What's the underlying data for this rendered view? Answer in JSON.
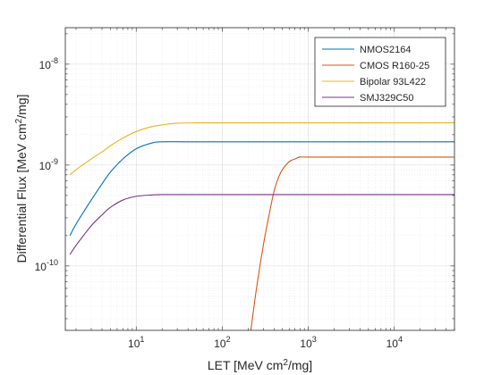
{
  "chart_data": {
    "type": "line",
    "xlabel": "LET [MeV cm²/mg]",
    "ylabel": "Differential Flux [MeV cm²/mg]",
    "xscale": "log",
    "yscale": "log",
    "xlim": [
      1.5,
      50000
    ],
    "ylim": [
      2.3e-11,
      2.3e-08
    ],
    "grid": true,
    "legend_position": "top-right",
    "x_ticks": [
      {
        "value": 10,
        "base": "10",
        "exp": "1"
      },
      {
        "value": 100,
        "base": "10",
        "exp": "2"
      },
      {
        "value": 1000,
        "base": "10",
        "exp": "3"
      },
      {
        "value": 10000,
        "base": "10",
        "exp": "4"
      }
    ],
    "y_ticks": [
      {
        "value": 1e-10,
        "base": "10",
        "exp": "-10"
      },
      {
        "value": 1e-09,
        "base": "10",
        "exp": "-9"
      },
      {
        "value": 1e-08,
        "base": "10",
        "exp": "-8"
      }
    ],
    "series": [
      {
        "name": "NMOS2164",
        "color": "#0072BD",
        "x": [
          1.7,
          2,
          3,
          4,
          5,
          7,
          10,
          15,
          20,
          50,
          100,
          1000,
          10000,
          50000
        ],
        "y": [
          2e-10,
          2.6e-10,
          4.5e-10,
          6.5e-10,
          8.5e-10,
          1.15e-09,
          1.45e-09,
          1.65e-09,
          1.7e-09,
          1.7e-09,
          1.7e-09,
          1.7e-09,
          1.7e-09,
          1.7e-09
        ]
      },
      {
        "name": "CMOS R160-25",
        "color": "#D95319",
        "x": [
          215,
          250,
          300,
          350,
          400,
          450,
          500,
          600,
          700,
          800,
          1000,
          10000,
          50000
        ],
        "y": [
          2.3e-11,
          6e-11,
          1.6e-10,
          3.2e-10,
          5.5e-10,
          7.5e-10,
          9e-10,
          1.08e-09,
          1.15e-09,
          1.2e-09,
          1.2e-09,
          1.2e-09,
          1.2e-09
        ]
      },
      {
        "name": "Bipolar 93L422",
        "color": "#EDB120",
        "x": [
          1.7,
          2,
          3,
          4,
          5,
          7,
          10,
          15,
          20,
          30,
          50,
          100,
          1000,
          10000,
          50000
        ],
        "y": [
          8e-10,
          9e-10,
          1.15e-09,
          1.35e-09,
          1.55e-09,
          1.85e-09,
          2.15e-09,
          2.4e-09,
          2.5e-09,
          2.6e-09,
          2.62e-09,
          2.62e-09,
          2.62e-09,
          2.62e-09,
          2.62e-09
        ]
      },
      {
        "name": "SMJ329C50",
        "color": "#7E2F8E",
        "x": [
          1.7,
          2,
          3,
          4,
          5,
          7,
          10,
          15,
          20,
          50,
          100,
          1000,
          10000,
          50000
        ],
        "y": [
          1.3e-10,
          1.6e-10,
          2.5e-10,
          3.2e-10,
          3.8e-10,
          4.5e-10,
          4.9e-10,
          5.05e-10,
          5.1e-10,
          5.1e-10,
          5.1e-10,
          5.1e-10,
          5.1e-10,
          5.1e-10
        ]
      }
    ]
  }
}
